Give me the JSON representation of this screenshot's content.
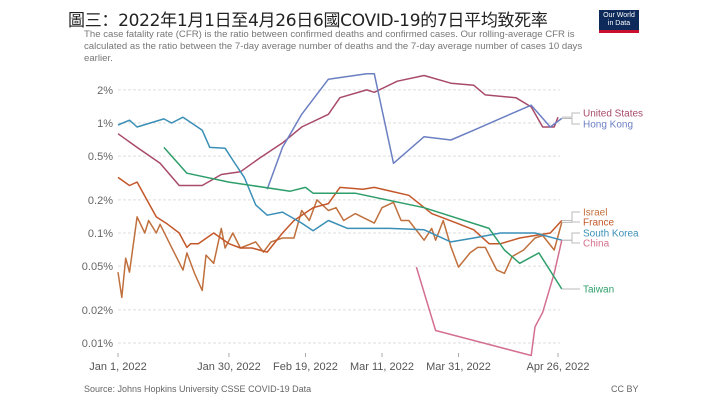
{
  "title": "圖三：2022年1月1日至4月26日6國COVID-19的7日平均致死率",
  "subtitle": "The case fatality rate (CFR) is the ratio between confirmed deaths and confirmed cases. Our rolling-average CFR is calculated as the ratio between the 7-day average number of deaths and the 7-day average number of cases 10 days earlier.",
  "logo": "Our World in Data",
  "footer": {
    "source": "Source: Johns Hopkins University CSSE COVID-19 Data",
    "license": "CC BY"
  },
  "chart_data": {
    "type": "line",
    "y_scale": "log",
    "ylim": [
      0.007,
      3
    ],
    "y_ticks": [
      {
        "v": 2,
        "label": "2%"
      },
      {
        "v": 1,
        "label": "1%"
      },
      {
        "v": 0.5,
        "label": "0.5%"
      },
      {
        "v": 0.2,
        "label": "0.2%"
      },
      {
        "v": 0.1,
        "label": "0.1%"
      },
      {
        "v": 0.05,
        "label": "0.05%"
      },
      {
        "v": 0.02,
        "label": "0.02%"
      },
      {
        "v": 0.01,
        "label": "0.01%"
      }
    ],
    "x_ticks": [
      {
        "d": "2022-01-01",
        "label": "Jan 1, 2022"
      },
      {
        "d": "2022-01-30",
        "label": "Jan 30, 2022"
      },
      {
        "d": "2022-02-19",
        "label": "Feb 19, 2022"
      },
      {
        "d": "2022-03-11",
        "label": "Mar 11, 2022"
      },
      {
        "d": "2022-03-31",
        "label": "Mar 31, 2022"
      },
      {
        "d": "2022-04-26",
        "label": "Apr 26, 2022"
      }
    ],
    "xlim": [
      "2022-01-01",
      "2022-04-26"
    ],
    "grid": true,
    "legend": "right (line end labels)",
    "series": [
      {
        "name": "United States",
        "color": "#a84a6a",
        "points": [
          [
            "2022-01-01",
            0.8
          ],
          [
            "2022-01-06",
            0.6
          ],
          [
            "2022-01-12",
            0.43
          ],
          [
            "2022-01-17",
            0.27
          ],
          [
            "2022-01-23",
            0.27
          ],
          [
            "2022-01-28",
            0.34
          ],
          [
            "2022-02-02",
            0.36
          ],
          [
            "2022-02-07",
            0.48
          ],
          [
            "2022-02-13",
            0.66
          ],
          [
            "2022-02-18",
            0.92
          ],
          [
            "2022-02-25",
            1.2
          ],
          [
            "2022-02-28",
            1.7
          ],
          [
            "2022-03-07",
            2.0
          ],
          [
            "2022-03-09",
            1.9
          ],
          [
            "2022-03-15",
            2.4
          ],
          [
            "2022-03-22",
            2.7
          ],
          [
            "2022-03-29",
            2.3
          ],
          [
            "2022-04-04",
            2.2
          ],
          [
            "2022-04-07",
            1.8
          ],
          [
            "2022-04-15",
            1.7
          ],
          [
            "2022-04-19",
            1.4
          ],
          [
            "2022-04-22",
            0.92
          ],
          [
            "2022-04-25",
            0.92
          ],
          [
            "2022-04-26",
            1.13
          ]
        ]
      },
      {
        "name": "Hong Kong",
        "color": "#6b7fc2",
        "points": [
          [
            "2022-02-09",
            0.25
          ],
          [
            "2022-02-13",
            0.6
          ],
          [
            "2022-02-18",
            1.2
          ],
          [
            "2022-02-25",
            2.5
          ],
          [
            "2022-03-07",
            2.8
          ],
          [
            "2022-03-09",
            2.8
          ],
          [
            "2022-03-14",
            0.43
          ],
          [
            "2022-03-22",
            0.75
          ],
          [
            "2022-03-29",
            0.7
          ],
          [
            "2022-04-04",
            0.86
          ],
          [
            "2022-04-11",
            1.1
          ],
          [
            "2022-04-19",
            1.45
          ],
          [
            "2022-04-24",
            0.92
          ],
          [
            "2022-04-27",
            1.1
          ]
        ]
      },
      {
        "name": "Israel",
        "color": "#c0703d",
        "points": [
          [
            "2022-01-01",
            0.044
          ],
          [
            "2022-01-02",
            0.026
          ],
          [
            "2022-01-03",
            0.059
          ],
          [
            "2022-01-04",
            0.044
          ],
          [
            "2022-01-06",
            0.14
          ],
          [
            "2022-01-08",
            0.1
          ],
          [
            "2022-01-09",
            0.13
          ],
          [
            "2022-01-11",
            0.1
          ],
          [
            "2022-01-12",
            0.12
          ],
          [
            "2022-01-15",
            0.074
          ],
          [
            "2022-01-18",
            0.046
          ],
          [
            "2022-01-19",
            0.066
          ],
          [
            "2022-01-21",
            0.043
          ],
          [
            "2022-01-23",
            0.03
          ],
          [
            "2022-01-24",
            0.063
          ],
          [
            "2022-01-26",
            0.053
          ],
          [
            "2022-01-28",
            0.11
          ],
          [
            "2022-01-29",
            0.073
          ],
          [
            "2022-01-31",
            0.1
          ],
          [
            "2022-02-02",
            0.073
          ],
          [
            "2022-02-06",
            0.083
          ],
          [
            "2022-02-08",
            0.067
          ],
          [
            "2022-02-10",
            0.083
          ],
          [
            "2022-02-13",
            0.09
          ],
          [
            "2022-02-16",
            0.09
          ],
          [
            "2022-02-18",
            0.16
          ],
          [
            "2022-02-20",
            0.13
          ],
          [
            "2022-02-22",
            0.2
          ],
          [
            "2022-02-25",
            0.16
          ],
          [
            "2022-02-27",
            0.17
          ],
          [
            "2022-03-01",
            0.13
          ],
          [
            "2022-03-04",
            0.15
          ],
          [
            "2022-03-09",
            0.123
          ],
          [
            "2022-03-11",
            0.17
          ],
          [
            "2022-03-14",
            0.19
          ],
          [
            "2022-03-16",
            0.13
          ],
          [
            "2022-03-18",
            0.13
          ],
          [
            "2022-03-22",
            0.086
          ],
          [
            "2022-03-24",
            0.11
          ],
          [
            "2022-03-25",
            0.086
          ],
          [
            "2022-03-27",
            0.13
          ],
          [
            "2022-03-29",
            0.075
          ],
          [
            "2022-03-31",
            0.049
          ],
          [
            "2022-04-03",
            0.066
          ],
          [
            "2022-04-05",
            0.074
          ],
          [
            "2022-04-07",
            0.074
          ],
          [
            "2022-04-10",
            0.046
          ],
          [
            "2022-04-12",
            0.043
          ],
          [
            "2022-04-14",
            0.061
          ],
          [
            "2022-04-17",
            0.07
          ],
          [
            "2022-04-20",
            0.09
          ],
          [
            "2022-04-22",
            0.095
          ],
          [
            "2022-04-25",
            0.07
          ],
          [
            "2022-04-27",
            0.125
          ]
        ]
      },
      {
        "name": "France",
        "color": "#c4572a",
        "points": [
          [
            "2022-01-01",
            0.32
          ],
          [
            "2022-01-04",
            0.27
          ],
          [
            "2022-01-06",
            0.29
          ],
          [
            "2022-01-11",
            0.14
          ],
          [
            "2022-01-14",
            0.12
          ],
          [
            "2022-01-17",
            0.1
          ],
          [
            "2022-01-19",
            0.074
          ],
          [
            "2022-01-20",
            0.08
          ],
          [
            "2022-01-22",
            0.08
          ],
          [
            "2022-01-26",
            0.1
          ],
          [
            "2022-01-30",
            0.08
          ],
          [
            "2022-02-02",
            0.073
          ],
          [
            "2022-02-05",
            0.073
          ],
          [
            "2022-02-09",
            0.067
          ],
          [
            "2022-02-13",
            0.1
          ],
          [
            "2022-02-16",
            0.13
          ],
          [
            "2022-02-21",
            0.17
          ],
          [
            "2022-02-25",
            0.185
          ],
          [
            "2022-02-28",
            0.26
          ],
          [
            "2022-03-06",
            0.25
          ],
          [
            "2022-03-09",
            0.26
          ],
          [
            "2022-03-18",
            0.22
          ],
          [
            "2022-03-24",
            0.15
          ],
          [
            "2022-03-30",
            0.125
          ],
          [
            "2022-04-04",
            0.107
          ],
          [
            "2022-04-08",
            0.08
          ],
          [
            "2022-04-11",
            0.08
          ],
          [
            "2022-04-16",
            0.09
          ],
          [
            "2022-04-24",
            0.1
          ],
          [
            "2022-04-27",
            0.13
          ]
        ]
      },
      {
        "name": "South Korea",
        "color": "#3a8fb7",
        "points": [
          [
            "2022-01-01",
            0.96
          ],
          [
            "2022-01-04",
            1.06
          ],
          [
            "2022-01-06",
            0.92
          ],
          [
            "2022-01-13",
            1.09
          ],
          [
            "2022-01-15",
            1.0
          ],
          [
            "2022-01-18",
            1.13
          ],
          [
            "2022-01-21",
            0.96
          ],
          [
            "2022-01-23",
            0.86
          ],
          [
            "2022-01-25",
            0.6
          ],
          [
            "2022-01-29",
            0.59
          ],
          [
            "2022-01-31",
            0.46
          ],
          [
            "2022-02-03",
            0.32
          ],
          [
            "2022-02-06",
            0.18
          ],
          [
            "2022-02-09",
            0.145
          ],
          [
            "2022-02-13",
            0.155
          ],
          [
            "2022-02-18",
            0.123
          ],
          [
            "2022-02-21",
            0.105
          ],
          [
            "2022-02-25",
            0.13
          ],
          [
            "2022-03-02",
            0.11
          ],
          [
            "2022-03-13",
            0.11
          ],
          [
            "2022-03-22",
            0.107
          ],
          [
            "2022-03-29",
            0.083
          ],
          [
            "2022-04-04",
            0.09
          ],
          [
            "2022-04-11",
            0.1
          ],
          [
            "2022-04-20",
            0.1
          ],
          [
            "2022-04-27",
            0.086
          ]
        ]
      },
      {
        "name": "China",
        "color": "#d4708f",
        "points": [
          [
            "2022-03-20",
            0.049
          ],
          [
            "2022-03-25",
            0.013
          ],
          [
            "2022-04-19",
            0.0077
          ],
          [
            "2022-04-20",
            0.014
          ],
          [
            "2022-04-22",
            0.019
          ],
          [
            "2022-04-25",
            0.043
          ],
          [
            "2022-04-27",
            0.086
          ]
        ]
      },
      {
        "name": "Taiwan",
        "color": "#2e9e6a",
        "points": [
          [
            "2022-01-13",
            0.6
          ],
          [
            "2022-01-19",
            0.35
          ],
          [
            "2022-01-30",
            0.29
          ],
          [
            "2022-02-15",
            0.24
          ],
          [
            "2022-02-19",
            0.26
          ],
          [
            "2022-02-21",
            0.23
          ],
          [
            "2022-03-04",
            0.23
          ],
          [
            "2022-03-22",
            0.17
          ],
          [
            "2022-04-08",
            0.11
          ],
          [
            "2022-04-12",
            0.07
          ],
          [
            "2022-04-16",
            0.053
          ],
          [
            "2022-04-21",
            0.066
          ],
          [
            "2022-04-27",
            0.031
          ]
        ]
      }
    ]
  }
}
